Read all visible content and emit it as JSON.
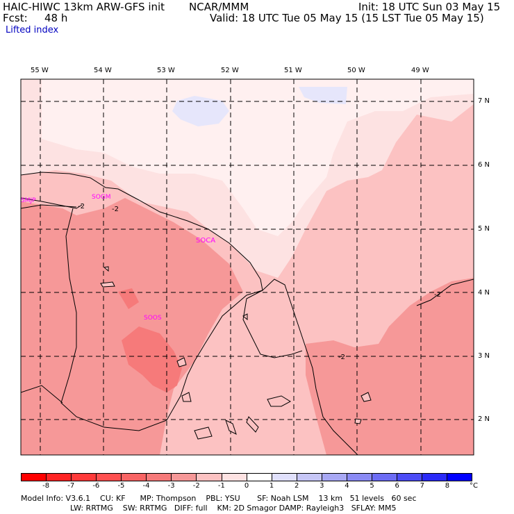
{
  "header": {
    "model": "HAIC-HIWC 13km ARW-GFS init",
    "center": "NCAR/MMM",
    "fcst_label": "Fcst:",
    "fcst_value": "48 h",
    "init": "Init: 18 UTC Sun 03 May 15",
    "valid": "Valid: 18 UTC Tue 05 May 15 (15 LST Tue 05 May 15)"
  },
  "field_name": "Lifted index",
  "map": {
    "lon_labels": [
      "55 W",
      "54 W",
      "53 W",
      "52 W",
      "51 W",
      "50 W",
      "49 W"
    ],
    "lat_labels": [
      "7 N",
      "6 N",
      "5 N",
      "4 N",
      "3 N",
      "2 N"
    ],
    "stations": [
      "SMJP",
      "SOCA",
      "SOOS",
      "SOGM"
    ],
    "contour_labels": [
      "-2",
      "-2",
      "-2",
      "-2"
    ]
  },
  "colorbar": {
    "ticks": [
      "-8",
      "-7",
      "-6",
      "-5",
      "-4",
      "-3",
      "-2",
      "-1",
      "0",
      "1",
      "2",
      "3",
      "4",
      "5",
      "6",
      "7",
      "8"
    ],
    "unit": "°C",
    "colors": [
      "#ff0000",
      "#ff2424",
      "#ff3a3a",
      "#ff5050",
      "#f86464",
      "#f67a7a",
      "#f69898",
      "#fcc2c2",
      "#fde2e2",
      "#ffffff",
      "#e0e0fc",
      "#c6c6f6",
      "#a8a8f4",
      "#8a8af4",
      "#6c6cf4",
      "#4c4cf6",
      "#2a2af8",
      "#0000ff"
    ]
  },
  "footer": {
    "line1": "Model Info: V3.6.1    CU: KF      MP: Thompson    PBL: YSU       SF: Noah LSM    13 km   51 levels   60 sec",
    "line2": "LW: RRTMG    SW: RRTMG   DIFF: full    KM: 2D Smagor DAMP: Rayleigh3   SFLAY: MM5"
  },
  "colors": {
    "fill_light": "#fde2e2",
    "fill_mid": "#fcc2c2",
    "fill_dark": "#f69898",
    "fill_darker": "#f67a7a",
    "fill_blue": "#e0e0fc",
    "station": "#ff00ff"
  }
}
